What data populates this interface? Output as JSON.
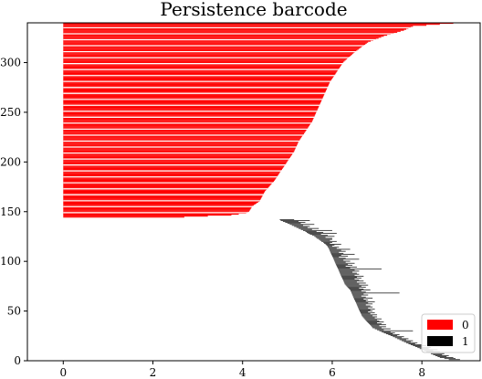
{
  "chart_data": {
    "type": "barcode",
    "title": "Persistence barcode",
    "xlim": [
      -0.8,
      9.3
    ],
    "ylim": [
      0,
      340
    ],
    "xticks": [
      0,
      2,
      4,
      6,
      8
    ],
    "yticks": [
      0,
      50,
      100,
      150,
      200,
      250,
      300
    ],
    "grid": false,
    "legend": {
      "location": "lower-right",
      "entries": [
        {
          "label": "0",
          "color": "#ff0000"
        },
        {
          "label": "1",
          "color": "#000000"
        }
      ]
    },
    "series": [
      {
        "name": "0",
        "color": "#ff0000",
        "index_range": [
          144,
          339
        ],
        "births": 0,
        "death_curve": [
          [
            144,
            2.7
          ],
          [
            146,
            3.75
          ],
          [
            148,
            4.08
          ],
          [
            150,
            4.15
          ],
          [
            155,
            4.22
          ],
          [
            160,
            4.38
          ],
          [
            170,
            4.5
          ],
          [
            180,
            4.7
          ],
          [
            190,
            4.85
          ],
          [
            200,
            5.0
          ],
          [
            210,
            5.15
          ],
          [
            220,
            5.25
          ],
          [
            230,
            5.4
          ],
          [
            240,
            5.55
          ],
          [
            250,
            5.65
          ],
          [
            260,
            5.75
          ],
          [
            270,
            5.85
          ],
          [
            280,
            5.95
          ],
          [
            290,
            6.1
          ],
          [
            300,
            6.25
          ],
          [
            310,
            6.5
          ],
          [
            320,
            6.8
          ],
          [
            326,
            7.15
          ],
          [
            332,
            7.6
          ],
          [
            336,
            7.8
          ],
          [
            339,
            8.7
          ]
        ]
      },
      {
        "name": "1",
        "color": "#000000",
        "bars": [
          [
            142,
            4.83,
            5.15
          ],
          [
            141,
            4.85,
            5.5
          ],
          [
            140,
            4.9,
            5.25
          ],
          [
            139,
            4.95,
            5.4
          ],
          [
            138,
            5.0,
            5.3
          ],
          [
            137,
            5.05,
            5.6
          ],
          [
            136,
            5.1,
            5.35
          ],
          [
            135,
            5.15,
            5.5
          ],
          [
            134,
            5.2,
            5.45
          ],
          [
            133,
            5.25,
            5.7
          ],
          [
            132,
            5.3,
            5.55
          ],
          [
            131,
            5.35,
            6.0
          ],
          [
            130,
            5.4,
            5.65
          ],
          [
            129,
            5.43,
            5.8
          ],
          [
            128,
            5.46,
            6.1
          ],
          [
            127,
            5.5,
            5.75
          ],
          [
            126,
            5.55,
            5.9
          ],
          [
            125,
            5.6,
            6.05
          ],
          [
            124,
            5.63,
            5.85
          ],
          [
            123,
            5.66,
            6.0
          ],
          [
            122,
            5.7,
            6.0
          ],
          [
            121,
            5.73,
            5.95
          ],
          [
            120,
            5.76,
            6.1
          ],
          [
            119,
            5.8,
            6.0
          ],
          [
            118,
            5.82,
            5.95
          ],
          [
            117,
            5.85,
            6.2
          ],
          [
            116,
            5.87,
            6.05
          ],
          [
            115,
            5.89,
            6.0
          ],
          [
            114,
            5.9,
            6.15
          ],
          [
            113,
            5.92,
            6.1
          ],
          [
            112,
            5.93,
            6.4
          ],
          [
            111,
            5.94,
            6.2
          ],
          [
            110,
            5.95,
            6.3
          ],
          [
            109,
            5.96,
            6.15
          ],
          [
            108,
            5.97,
            6.25
          ],
          [
            107,
            5.98,
            6.5
          ],
          [
            106,
            5.99,
            6.2
          ],
          [
            105,
            6.0,
            6.35
          ],
          [
            104,
            6.01,
            6.15
          ],
          [
            103,
            6.02,
            6.3
          ],
          [
            102,
            6.03,
            6.6
          ],
          [
            101,
            6.04,
            6.25
          ],
          [
            100,
            6.05,
            6.4
          ],
          [
            99,
            6.06,
            6.3
          ],
          [
            98,
            6.07,
            6.5
          ],
          [
            97,
            6.08,
            6.35
          ],
          [
            96,
            6.09,
            6.45
          ],
          [
            95,
            6.1,
            6.3
          ],
          [
            94,
            6.11,
            6.55
          ],
          [
            93,
            6.12,
            6.4
          ],
          [
            92,
            6.13,
            7.1
          ],
          [
            91,
            6.14,
            6.5
          ],
          [
            90,
            6.15,
            6.6
          ],
          [
            89,
            6.16,
            6.45
          ],
          [
            88,
            6.17,
            6.55
          ],
          [
            87,
            6.18,
            6.6
          ],
          [
            86,
            6.19,
            6.5
          ],
          [
            85,
            6.2,
            6.7
          ],
          [
            84,
            6.21,
            6.55
          ],
          [
            83,
            6.22,
            6.65
          ],
          [
            82,
            6.23,
            6.5
          ],
          [
            81,
            6.24,
            6.6
          ],
          [
            80,
            6.25,
            6.7
          ],
          [
            79,
            6.26,
            6.55
          ],
          [
            78,
            6.27,
            6.75
          ],
          [
            77,
            6.28,
            6.6
          ],
          [
            76,
            6.3,
            6.8
          ],
          [
            75,
            6.32,
            6.65
          ],
          [
            74,
            6.34,
            6.75
          ],
          [
            73,
            6.36,
            6.6
          ],
          [
            72,
            6.38,
            6.7
          ],
          [
            71,
            6.4,
            6.85
          ],
          [
            70,
            6.41,
            6.65
          ],
          [
            69,
            6.42,
            6.75
          ],
          [
            68,
            6.43,
            7.5
          ],
          [
            67,
            6.44,
            6.7
          ],
          [
            66,
            6.45,
            6.8
          ],
          [
            65,
            6.46,
            6.65
          ],
          [
            64,
            6.47,
            6.75
          ],
          [
            63,
            6.48,
            6.9
          ],
          [
            62,
            6.49,
            6.7
          ],
          [
            61,
            6.5,
            6.8
          ],
          [
            60,
            6.51,
            6.75
          ],
          [
            59,
            6.52,
            6.95
          ],
          [
            58,
            6.53,
            6.8
          ],
          [
            57,
            6.54,
            6.9
          ],
          [
            56,
            6.55,
            6.75
          ],
          [
            55,
            6.56,
            6.85
          ],
          [
            54,
            6.57,
            6.9
          ],
          [
            53,
            6.58,
            6.8
          ],
          [
            52,
            6.59,
            6.95
          ],
          [
            51,
            6.6,
            6.85
          ],
          [
            50,
            6.61,
            6.9
          ],
          [
            49,
            6.62,
            6.8
          ],
          [
            48,
            6.63,
            6.95
          ],
          [
            47,
            6.64,
            6.85
          ],
          [
            46,
            6.65,
            7.0
          ],
          [
            45,
            6.66,
            6.9
          ],
          [
            44,
            6.68,
            7.0
          ],
          [
            43,
            6.7,
            6.95
          ],
          [
            42,
            6.72,
            7.1
          ],
          [
            41,
            6.74,
            7.0
          ],
          [
            40,
            6.76,
            7.05
          ],
          [
            39,
            6.78,
            7.15
          ],
          [
            38,
            6.8,
            7.0
          ],
          [
            37,
            6.82,
            7.1
          ],
          [
            36,
            6.84,
            7.2
          ],
          [
            35,
            6.86,
            7.05
          ],
          [
            34,
            6.88,
            7.2
          ],
          [
            33,
            6.9,
            7.1
          ],
          [
            32,
            6.95,
            7.3
          ],
          [
            31,
            7.0,
            7.15
          ],
          [
            30,
            7.05,
            7.8
          ],
          [
            29,
            7.1,
            7.3
          ],
          [
            28,
            7.15,
            7.4
          ],
          [
            27,
            7.2,
            7.35
          ],
          [
            26,
            7.25,
            7.5
          ],
          [
            25,
            7.3,
            7.45
          ],
          [
            24,
            7.35,
            7.6
          ],
          [
            23,
            7.4,
            7.55
          ],
          [
            22,
            7.45,
            7.7
          ],
          [
            21,
            7.5,
            7.65
          ],
          [
            20,
            7.55,
            7.8
          ],
          [
            19,
            7.6,
            7.75
          ],
          [
            18,
            7.65,
            7.9
          ],
          [
            17,
            7.7,
            7.85
          ],
          [
            16,
            7.75,
            8.0
          ],
          [
            15,
            7.8,
            8.1
          ],
          [
            14,
            7.85,
            8.0
          ],
          [
            13,
            7.9,
            8.2
          ],
          [
            12,
            7.95,
            8.15
          ],
          [
            11,
            8.0,
            8.35
          ],
          [
            10,
            8.05,
            8.25
          ],
          [
            9,
            8.1,
            8.4
          ],
          [
            8,
            8.15,
            8.3
          ],
          [
            7,
            8.2,
            8.5
          ],
          [
            6,
            8.25,
            8.45
          ],
          [
            5,
            8.3,
            8.6
          ],
          [
            4,
            8.35,
            8.55
          ],
          [
            3,
            8.4,
            8.7
          ],
          [
            2,
            8.5,
            8.75
          ],
          [
            1,
            8.6,
            8.85
          ],
          [
            0,
            8.05,
            8.8
          ]
        ]
      }
    ]
  }
}
